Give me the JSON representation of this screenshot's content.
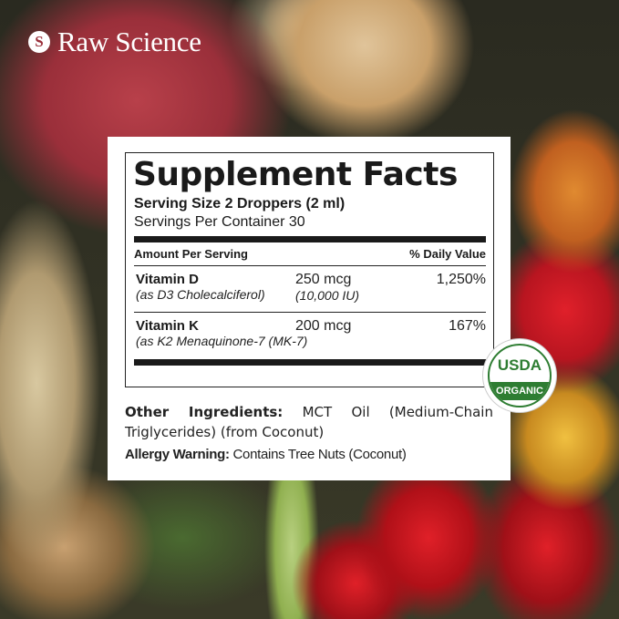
{
  "brand": {
    "name": "Raw Science",
    "logo_letter": "S"
  },
  "facts": {
    "title": "Supplement Facts",
    "serving_size": "Serving Size 2 Droppers (2 ml)",
    "servings_per_container": "Servings Per Container 30",
    "header_left": "Amount Per Serving",
    "header_right": "% Daily Value",
    "rows": [
      {
        "name": "Vitamin D",
        "source": "(as D3 Cholecalciferol)",
        "amount": "250 mcg",
        "amount_note": "(10,000 IU)",
        "dv": "1,250%"
      },
      {
        "name": "Vitamin K",
        "source": "(as K2 Menaquinone-7 (MK-7)",
        "amount": "200 mcg",
        "amount_note": "",
        "dv": "167%"
      }
    ]
  },
  "other_ingredients": {
    "label": "Other Ingredients:",
    "text": " MCT Oil (Medium-Chain Triglycerides) (from Coconut)"
  },
  "allergy": {
    "label": "Allergy Warning:",
    "text": " Contains Tree Nuts (Coconut)"
  },
  "seal": {
    "top": "USDA",
    "bottom": "ORGANIC",
    "color": "#2e7d32"
  }
}
